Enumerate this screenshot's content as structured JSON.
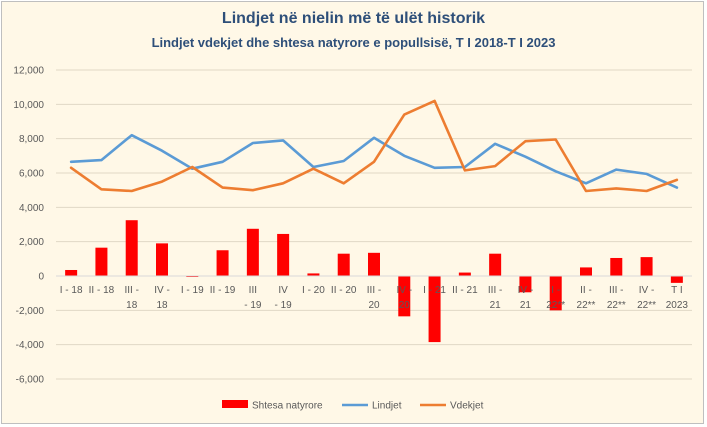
{
  "chart_data": {
    "type": "bar+line",
    "title": "Lindjet në nielin më të ulët historik",
    "subtitle": "Lindjet vdekjet dhe shtesa natyrore e popullsisë, T I 2018-T I 2023",
    "categories": [
      [
        "I - 18"
      ],
      [
        "II - 18"
      ],
      [
        "III -",
        "18"
      ],
      [
        "IV -",
        "18"
      ],
      [
        "I - 19"
      ],
      [
        "II - 19"
      ],
      [
        "III",
        "- 19"
      ],
      [
        "IV",
        "- 19"
      ],
      [
        "I - 20"
      ],
      [
        "II - 20"
      ],
      [
        "III -",
        "20"
      ],
      [
        "IV -",
        "20"
      ],
      [
        "I - 21"
      ],
      [
        "II - 21"
      ],
      [
        "III -",
        "21"
      ],
      [
        "IV -",
        "21"
      ],
      [
        "I -",
        "22**"
      ],
      [
        "II -",
        "22**"
      ],
      [
        "III -",
        "22**"
      ],
      [
        "IV -",
        "22**"
      ],
      [
        "T I",
        "2023"
      ]
    ],
    "series": [
      {
        "name": "Shtesa natyrore",
        "type": "bar",
        "color": "#ff0000",
        "values": [
          350,
          1650,
          3250,
          1900,
          -50,
          1500,
          2750,
          2450,
          150,
          1300,
          1350,
          -2350,
          -3850,
          200,
          1300,
          -950,
          -2000,
          500,
          1050,
          1100,
          -400
        ]
      },
      {
        "name": "Lindjet",
        "type": "line",
        "color": "#5b9bd5",
        "values": [
          6650,
          6750,
          8200,
          7300,
          6250,
          6650,
          7750,
          7900,
          6350,
          6700,
          8050,
          7000,
          6300,
          6350,
          7700,
          6950,
          6100,
          5400,
          6200,
          5950,
          5150
        ]
      },
      {
        "name": "Vdekjet",
        "type": "line",
        "color": "#ed7d31",
        "values": [
          6300,
          5050,
          4950,
          5500,
          6350,
          5150,
          5000,
          5400,
          6250,
          5400,
          6650,
          9400,
          10200,
          6150,
          6400,
          7850,
          7950,
          4950,
          5100,
          4950,
          5600
        ]
      }
    ],
    "y_ticks": [
      "12,000",
      "10,000",
      "8,000",
      "6,000",
      "4,000",
      "2,000",
      "0",
      "-2,000",
      "-4,000",
      "-6,000"
    ],
    "ylim": [
      -6000,
      12000
    ],
    "grid": true,
    "legend": "bottom"
  }
}
